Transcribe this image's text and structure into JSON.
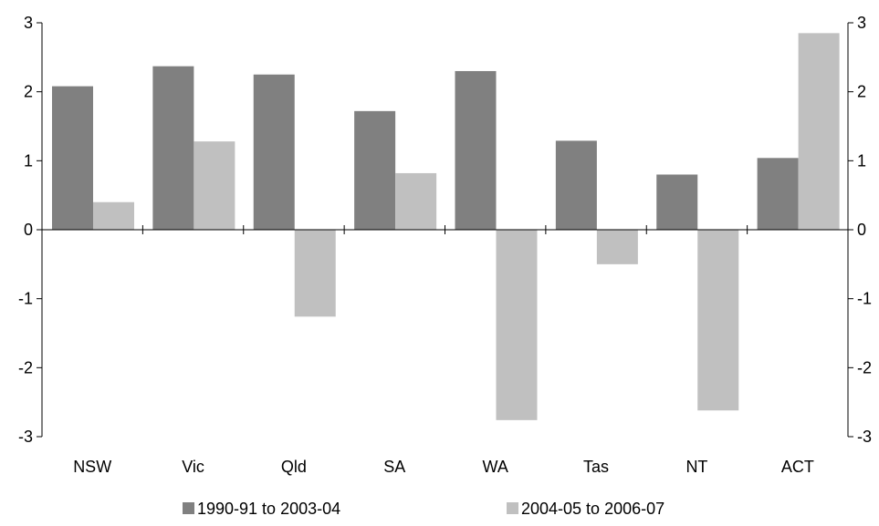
{
  "chart_data": {
    "type": "bar",
    "title": "",
    "xlabel": "",
    "ylabel": "",
    "ylim": [
      -3,
      3
    ],
    "yticks": [
      3,
      2,
      1,
      0,
      -1,
      -2,
      -3
    ],
    "ytick_labels": [
      "3",
      "2",
      "1",
      "0",
      "-1",
      "-2",
      "-3"
    ],
    "dual_y_axis": true,
    "grid": false,
    "legend_position": "bottom",
    "categories": [
      "NSW",
      "Vic",
      "Qld",
      "SA",
      "WA",
      "Tas",
      "NT",
      "ACT"
    ],
    "series": [
      {
        "name": "1990-91 to 2003-04",
        "color": "#808080",
        "values": [
          2.08,
          2.37,
          2.25,
          1.72,
          2.3,
          1.29,
          0.8,
          1.04
        ]
      },
      {
        "name": "2004-05 to 2006-07",
        "color": "#c0c0c0",
        "values": [
          0.4,
          1.28,
          -1.26,
          0.82,
          -2.76,
          -0.5,
          -2.62,
          2.85
        ]
      }
    ]
  }
}
